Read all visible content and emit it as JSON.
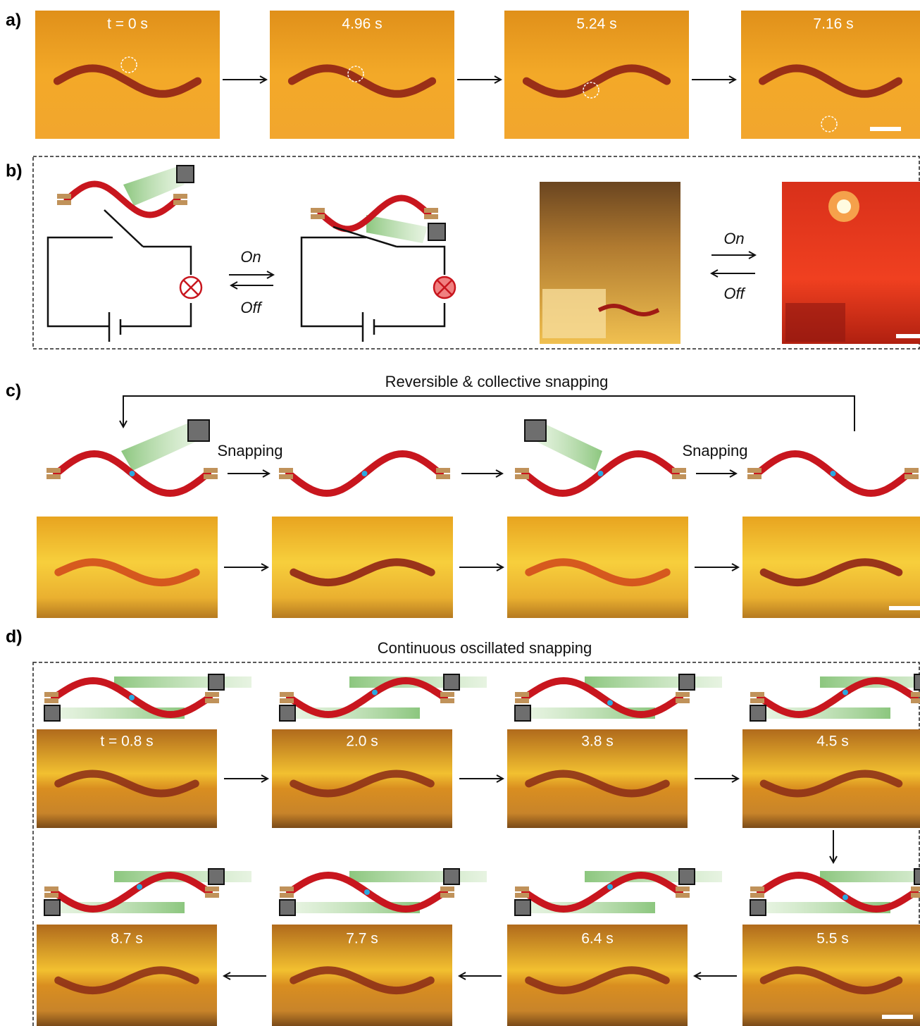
{
  "panels": {
    "a": {
      "label": "a)",
      "time_labels": [
        "t = 0 s",
        "4.96 s",
        "5.24 s",
        "7.16 s"
      ]
    },
    "b": {
      "label": "b)",
      "circuit_switch": {
        "forward": "On",
        "backward": "Off"
      },
      "photo_switch": {
        "forward": "On",
        "backward": "Off"
      }
    },
    "c": {
      "label": "c)",
      "title": "Reversible & collective snapping",
      "step_labels": [
        "Snapping",
        "Snapping"
      ]
    },
    "d": {
      "label": "d)",
      "title": "Continuous oscillated snapping",
      "time_labels": [
        "t = 0.8 s",
        "2.0 s",
        "3.8 s",
        "4.5 s",
        "5.5 s",
        "6.4 s",
        "7.7 s",
        "8.7 s"
      ]
    }
  }
}
